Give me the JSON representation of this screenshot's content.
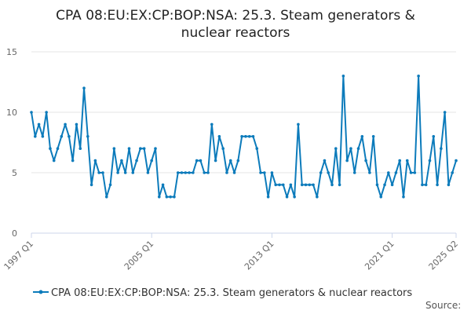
{
  "chart_data": {
    "type": "line",
    "title_line1": "CPA 08:EU:EX:CP:BOP:NSA: 25.3. Steam generators &",
    "title_line2": "nuclear reactors",
    "xlabel": "",
    "ylabel": "",
    "ylim": [
      0,
      15
    ],
    "yticks": [
      "0",
      "5",
      "10",
      "15"
    ],
    "xticks": [
      {
        "label": "1997 Q1",
        "index": 0
      },
      {
        "label": "2005 Q1",
        "index": 32
      },
      {
        "label": "2013 Q1",
        "index": 64
      },
      {
        "label": "2021 Q1",
        "index": 96
      },
      {
        "label": "2025 Q2",
        "index": 113
      }
    ],
    "grid": true,
    "legend_position": "bottom",
    "series": [
      {
        "name": "CPA 08:EU:EX:CP:BOP:NSA: 25.3. Steam generators & nuclear reactors",
        "color": "#0c7bbb",
        "x_start": "1997 Q1",
        "values": [
          10,
          8,
          9,
          8,
          10,
          7,
          6,
          7,
          8,
          9,
          8,
          6,
          9,
          7,
          12,
          8,
          4,
          6,
          5,
          5,
          3,
          4,
          7,
          5,
          6,
          5,
          7,
          5,
          6,
          7,
          7,
          5,
          6,
          7,
          3,
          4,
          3,
          3,
          3,
          5,
          5,
          5,
          5,
          5,
          6,
          6,
          5,
          5,
          9,
          6,
          8,
          7,
          5,
          6,
          5,
          6,
          8,
          8,
          8,
          8,
          7,
          5,
          5,
          3,
          5,
          4,
          4,
          4,
          3,
          4,
          3,
          9,
          4,
          4,
          4,
          4,
          3,
          5,
          6,
          5,
          4,
          7,
          4,
          13,
          6,
          7,
          5,
          7,
          8,
          6,
          5,
          8,
          4,
          3,
          4,
          5,
          4,
          5,
          6,
          3,
          6,
          5,
          5,
          13,
          4,
          4,
          6,
          8,
          4,
          7,
          10,
          4,
          5,
          6
        ]
      }
    ]
  },
  "footer": {
    "source_label": "Source:"
  }
}
